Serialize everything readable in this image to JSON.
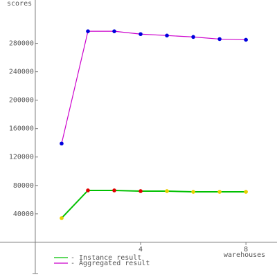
{
  "chart_data": {
    "type": "line",
    "y_label": "scores",
    "x_label": "warehouses",
    "x": [
      1,
      2,
      3,
      4,
      5,
      6,
      7,
      8
    ],
    "series": [
      {
        "name": "- Instance result",
        "color": "#00c000",
        "marker_colors": [
          "#e8d000",
          "#e00000",
          "#e00000",
          "#e00000",
          "#e8d000",
          "#e8d000",
          "#e8d000",
          "#e8d000"
        ],
        "values": [
          34000,
          73000,
          73000,
          72000,
          72000,
          71000,
          71000,
          71000
        ]
      },
      {
        "name": "- Aggregated result",
        "color": "#cc00cc",
        "marker_colors": [
          "#0000dd",
          "#0000dd",
          "#0000dd",
          "#0000dd",
          "#0000dd",
          "#0000dd",
          "#0000dd",
          "#0000dd"
        ],
        "values": [
          139000,
          297000,
          297000,
          293000,
          291000,
          289000,
          286000,
          285000
        ]
      }
    ],
    "xlim": [
      -1.34,
      9.18
    ],
    "ylim": [
      -44000,
      341000
    ],
    "xticks": [
      4,
      8
    ],
    "yticks": [
      40000,
      80000,
      120000,
      160000,
      200000,
      240000,
      280000
    ]
  }
}
